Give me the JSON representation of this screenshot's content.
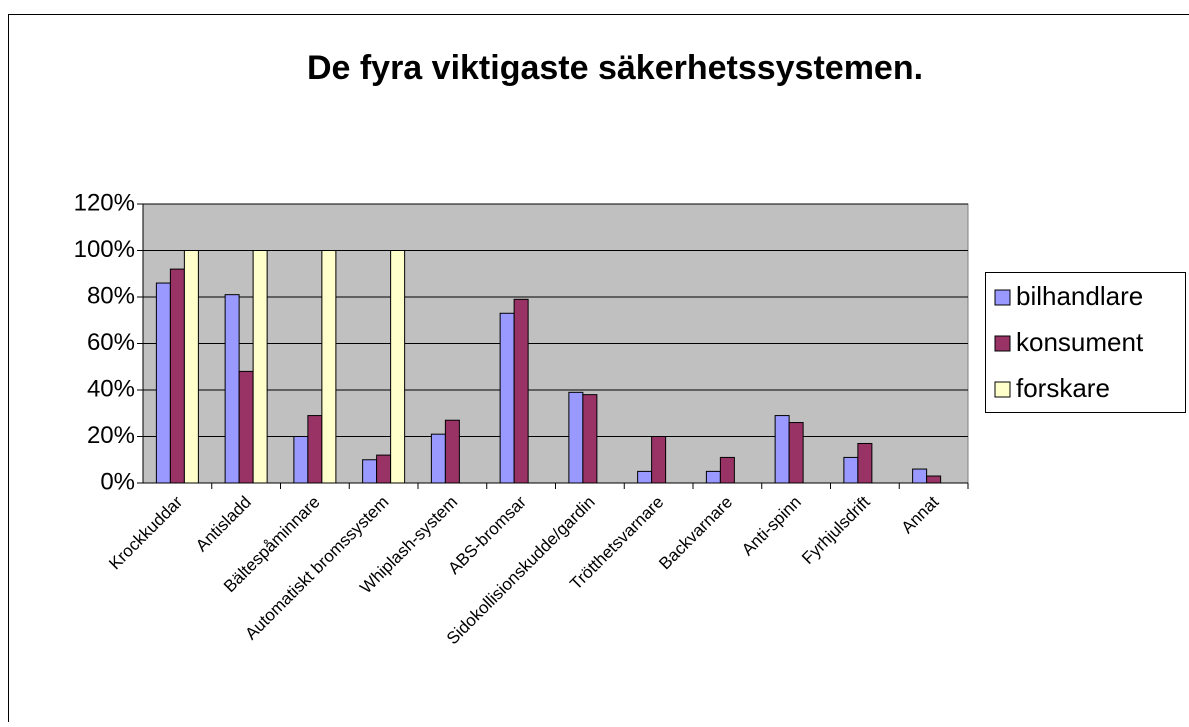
{
  "chart_data": {
    "type": "bar",
    "title": "De fyra viktigaste säkerhetssystemen.",
    "categories": [
      "Krockkuddar",
      "Antisladd",
      "Bältespåminnare",
      "Automatiskt bromssystem",
      "Whiplash-system",
      "ABS-bromsar",
      "Sidokollisionskudde/gardin",
      "Trötthetsvarnare",
      "Backvarnare",
      "Anti-spinn",
      "Fyrhjulsdrift",
      "Annat"
    ],
    "series": [
      {
        "name": "bilhandlare",
        "color": "#9999ff",
        "values": [
          86,
          81,
          20,
          10,
          21,
          73,
          39,
          5,
          5,
          29,
          11,
          6
        ]
      },
      {
        "name": "konsument",
        "color": "#993366",
        "values": [
          92,
          48,
          29,
          12,
          27,
          79,
          38,
          20,
          11,
          26,
          17,
          3
        ]
      },
      {
        "name": "forskare",
        "color": "#ffffcc",
        "values": [
          100,
          100,
          100,
          100,
          null,
          null,
          null,
          null,
          null,
          null,
          null,
          null
        ]
      }
    ],
    "ylim": [
      0,
      120
    ],
    "yticks": [
      {
        "value": 0,
        "label": "0%"
      },
      {
        "value": 20,
        "label": "20%"
      },
      {
        "value": 40,
        "label": "40%"
      },
      {
        "value": 60,
        "label": "60%"
      },
      {
        "value": 80,
        "label": "80%"
      },
      {
        "value": 100,
        "label": "100%"
      },
      {
        "value": 120,
        "label": "120%"
      }
    ],
    "grid": true,
    "legend": "right",
    "plot_background": "#c0c0c0"
  }
}
